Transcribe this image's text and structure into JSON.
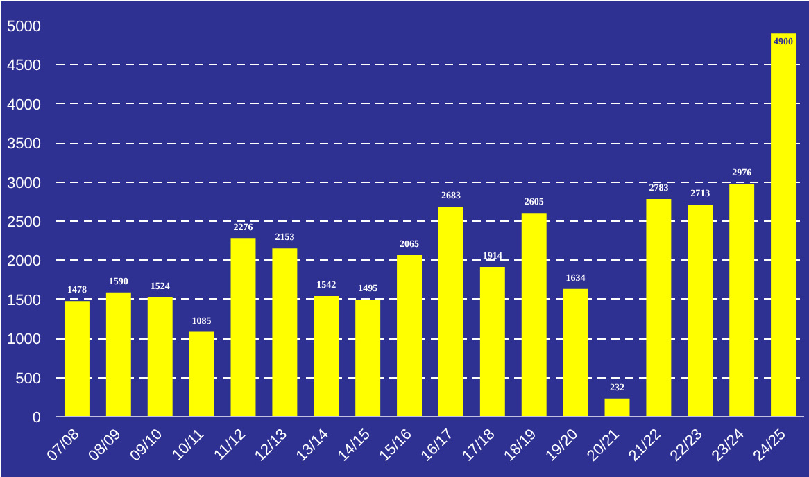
{
  "chart_data": {
    "type": "bar",
    "categories": [
      "07/08",
      "08/09",
      "09/10",
      "10/11",
      "11/12",
      "12/13",
      "13/14",
      "14/15",
      "15/16",
      "16/17",
      "17/18",
      "18/19",
      "19/20",
      "20/21",
      "21/22",
      "22/23",
      "23/24",
      "24/25"
    ],
    "values": [
      1478,
      1590,
      1524,
      1085,
      2276,
      2153,
      1542,
      1495,
      2065,
      2683,
      1914,
      2605,
      1634,
      232,
      2783,
      2713,
      2976,
      4900
    ],
    "color": "#ffff00",
    "ylim": [
      0,
      5000
    ],
    "yticks": [
      0,
      500,
      1000,
      1500,
      2000,
      2500,
      3000,
      3500,
      4000,
      4500,
      5000
    ],
    "grid": "y",
    "data_labels": true
  }
}
